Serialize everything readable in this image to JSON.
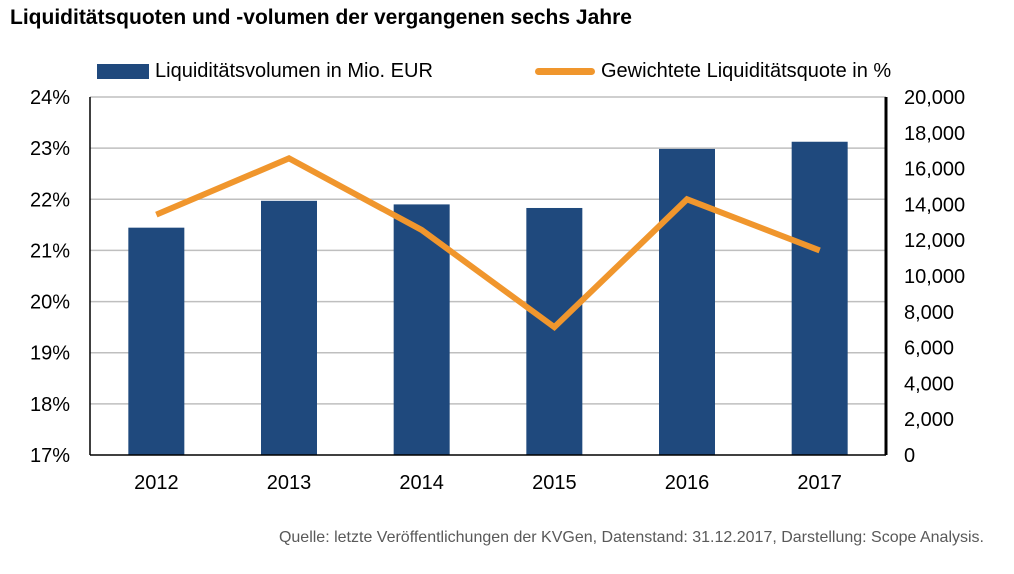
{
  "title": "Liquiditätsquoten und -volumen der vergangenen sechs Jahre",
  "source": "Quelle: letzte Veröffentlichungen der KVGen, Datenstand: 31.12.2017, Darstellung: Scope Analysis.",
  "chart_data": {
    "type": "bar",
    "categories": [
      "2012",
      "2013",
      "2014",
      "2015",
      "2016",
      "2017"
    ],
    "series": [
      {
        "name": "Liquiditätsvolumen in Mio. EUR",
        "type": "bar",
        "axis": "right",
        "color": "#1F497D",
        "values": [
          12700,
          14200,
          14000,
          13800,
          17100,
          17500
        ]
      },
      {
        "name": "Gewichtete Liquiditätsquote in %",
        "type": "line",
        "axis": "left",
        "color": "#F0962D",
        "values": [
          21.7,
          22.8,
          21.4,
          19.5,
          22.0,
          21.0
        ]
      }
    ],
    "y_left": {
      "ylim": [
        17,
        24
      ],
      "ticks": [
        "17%",
        "18%",
        "19%",
        "20%",
        "21%",
        "22%",
        "23%",
        "24%"
      ]
    },
    "y_right": {
      "ylim": [
        0,
        20000
      ],
      "ticks": [
        "0",
        "2,000",
        "4,000",
        "6,000",
        "8,000",
        "10,000",
        "12,000",
        "14,000",
        "16,000",
        "18,000",
        "20,000"
      ]
    },
    "grid": true,
    "legend": "top"
  }
}
